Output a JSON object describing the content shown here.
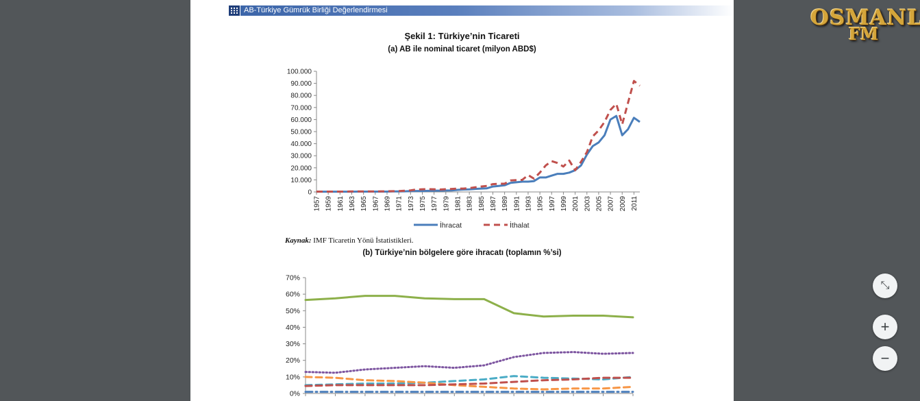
{
  "header": {
    "title": "AB-Türkiye Gümrük Birliği Değerlendirmesi"
  },
  "figure": {
    "title": "Şekil 1: Türkiye’nin Ticareti",
    "subtitle_a": "(a) AB ile nominal ticaret (milyon ABD$)",
    "source_label": "Kaynak:",
    "source_text": "IMF Ticaretin Yönü İstatistikleri.",
    "subtitle_b": "(b) Türkiye’nin bölgelere göre ihracatı (toplamın %’si)"
  },
  "logo": {
    "line1": "OSMANLI",
    "line2": "FM"
  },
  "controls": {
    "fit_symbol": "⤡",
    "zoom_in_symbol": "+",
    "zoom_out_symbol": "−"
  },
  "colors": {
    "header_bar": "#3a64a8",
    "ihracat": "#4a7ebb",
    "ithalat": "#c0504d"
  },
  "chart_data": [
    {
      "type": "line",
      "title": "(a) AB ile nominal ticaret (milyon ABD$)",
      "x": [
        1957,
        1958,
        1959,
        1960,
        1961,
        1962,
        1963,
        1964,
        1965,
        1966,
        1967,
        1968,
        1969,
        1970,
        1971,
        1972,
        1973,
        1974,
        1975,
        1976,
        1977,
        1978,
        1979,
        1980,
        1981,
        1982,
        1983,
        1984,
        1985,
        1986,
        1987,
        1988,
        1989,
        1990,
        1991,
        1992,
        1993,
        1994,
        1995,
        1996,
        1997,
        1998,
        1999,
        2000,
        2001,
        2002,
        2003,
        2004,
        2005,
        2006,
        2007,
        2008,
        2009,
        2010,
        2011,
        2012
      ],
      "tick_labels": [
        "1957",
        "1959",
        "1961",
        "1963",
        "1965",
        "1967",
        "1969",
        "1971",
        "1973",
        "1975",
        "1977",
        "1979",
        "1981",
        "1983",
        "1985",
        "1987",
        "1989",
        "1991",
        "1993",
        "1995",
        "1997",
        "1999",
        "2001",
        "2003",
        "2005",
        "2007",
        "2009",
        "2011"
      ],
      "ylim": [
        0,
        100000
      ],
      "y_ticks": [
        "0",
        "10.000",
        "20.000",
        "30.000",
        "40.000",
        "50.000",
        "60.000",
        "70.000",
        "80.000",
        "90.000",
        "100.000"
      ],
      "series": [
        {
          "name": "İhracat",
          "style": "solid",
          "color": "#4a7ebb",
          "values": [
            200,
            200,
            200,
            200,
            200,
            200,
            200,
            300,
            300,
            300,
            300,
            300,
            300,
            400,
            400,
            500,
            700,
            800,
            800,
            900,
            1000,
            1100,
            1200,
            1300,
            1700,
            2000,
            2100,
            2500,
            2800,
            3000,
            4500,
            5000,
            5500,
            7500,
            8000,
            8500,
            8500,
            9000,
            12000,
            12000,
            13500,
            15000,
            15000,
            16000,
            18000,
            22000,
            31000,
            38000,
            41000,
            47000,
            60000,
            63000,
            47000,
            52000,
            61500,
            58000
          ]
        },
        {
          "name": "İthalat",
          "style": "dashed",
          "color": "#c0504d",
          "values": [
            300,
            300,
            300,
            300,
            300,
            300,
            400,
            400,
            400,
            400,
            400,
            500,
            500,
            600,
            700,
            1000,
            1300,
            2000,
            2200,
            2300,
            2200,
            2000,
            2300,
            2500,
            2700,
            2800,
            3200,
            3800,
            4500,
            5000,
            6500,
            6800,
            6800,
            9500,
            9800,
            10000,
            14000,
            11000,
            16000,
            22000,
            25500,
            24000,
            21000,
            26000,
            18000,
            25000,
            33000,
            46000,
            51000,
            58000,
            68000,
            73000,
            56000,
            74000,
            92000,
            88000
          ]
        }
      ],
      "legend_position": "bottom-center",
      "grid": false
    },
    {
      "type": "line",
      "title": "(b) Türkiye’nin bölgelere göre ihracatı (toplamın %’si)",
      "x": [
        1,
        2,
        3,
        4,
        5,
        6,
        7,
        8,
        9,
        10,
        11,
        12
      ],
      "ylim": [
        0,
        70
      ],
      "y_ticks": [
        "0%",
        "10%",
        "20%",
        "30%",
        "40%",
        "50%",
        "60%",
        "70%"
      ],
      "series": [
        {
          "style": "solid",
          "color": "#8db04a",
          "values": [
            56.5,
            57.5,
            59,
            59,
            57.5,
            57,
            57,
            48.5,
            46.5,
            47,
            47,
            46
          ]
        },
        {
          "style": "dotted",
          "color": "#7d55a0",
          "values": [
            13,
            12.5,
            14.5,
            15.5,
            16.5,
            15.5,
            17,
            22,
            24.5,
            25,
            24,
            24.5
          ]
        },
        {
          "style": "dashed",
          "color": "#4bacc6",
          "values": [
            5,
            5.5,
            6,
            6,
            6.5,
            7.5,
            8.5,
            10.5,
            9.5,
            9,
            8.5,
            10
          ]
        },
        {
          "style": "dashed",
          "color": "#f79646",
          "values": [
            10,
            9.5,
            8,
            7.5,
            6.5,
            5,
            4,
            3,
            2.5,
            3,
            3,
            4
          ]
        },
        {
          "style": "dashed",
          "color": "#c0504d",
          "values": [
            4.5,
            5,
            5,
            5,
            5,
            5.5,
            6,
            7,
            8,
            8.5,
            9.5,
            9.5
          ]
        },
        {
          "style": "dash-dot",
          "color": "#4f81bd",
          "values": [
            1,
            1,
            1,
            1,
            1,
            1,
            1,
            1,
            1,
            1,
            1,
            1
          ]
        }
      ],
      "grid": false
    }
  ]
}
